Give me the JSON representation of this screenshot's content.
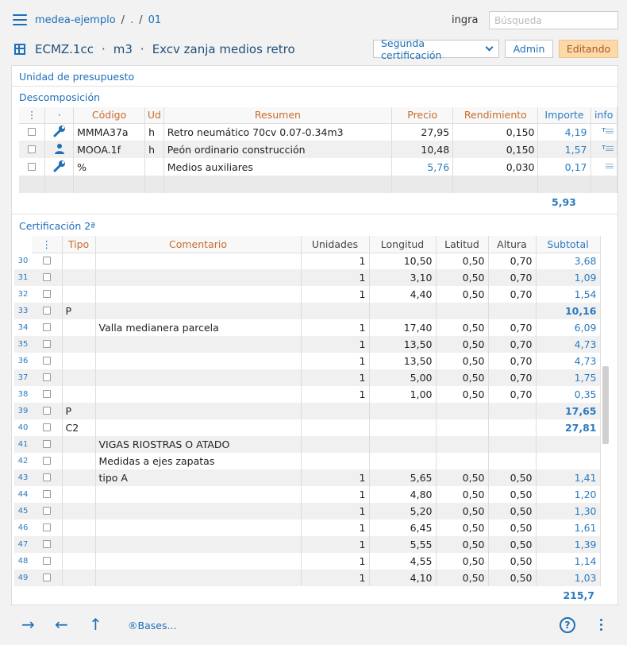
{
  "topbar": {
    "breadcrumb": [
      "medea-ejemplo",
      ".",
      "01"
    ],
    "user": "ingra",
    "search_placeholder": "Búsqueda"
  },
  "titlebar": {
    "code": "ECMZ.1cc",
    "unit": "m3",
    "summary": "Excv zanja medios retro",
    "cert_select": "Segunda certificación",
    "admin_label": "Admin",
    "edit_label": "Editando"
  },
  "unit_section_title": "Unidad de presupuesto",
  "decomp": {
    "title": "Descomposición",
    "headers": [
      "⋮",
      "·",
      "Código",
      "Ud",
      "Resumen",
      "Precio",
      "Rendimiento",
      "Importe",
      "info"
    ],
    "rows": [
      {
        "icon": "wrench-icon",
        "code": "MMMA37a",
        "ud": "h",
        "summary": "Retro neumático 70cv 0.07-0.34m3",
        "price": "27,95",
        "yield": "0,150",
        "amount": "4,19",
        "info": "ᵀ𝄘"
      },
      {
        "icon": "person-icon",
        "code": "MOOA.1f",
        "ud": "h",
        "summary": "Peón ordinario construcción",
        "price": "10,48",
        "yield": "0,150",
        "amount": "1,57",
        "info": "ᵀ𝄘"
      },
      {
        "icon": "wrench-icon",
        "code": "%",
        "ud": "",
        "summary": "Medios auxiliares",
        "price": "5,76",
        "yield": "0,030",
        "amount": "0,17",
        "info": "𝄘"
      }
    ],
    "total": "5,93"
  },
  "cert": {
    "title": "Certificación 2ª",
    "headers": [
      "⋮",
      "Tipo",
      "Comentario",
      "Unidades",
      "Longitud",
      "Latitud",
      "Altura",
      "Subtotal"
    ],
    "rows": [
      {
        "n": "30",
        "tipo": "",
        "com": "",
        "u": "1",
        "lo": "10,50",
        "la": "0,50",
        "al": "0,70",
        "st": "3,68",
        "bold": false
      },
      {
        "n": "31",
        "tipo": "",
        "com": "",
        "u": "1",
        "lo": "3,10",
        "la": "0,50",
        "al": "0,70",
        "st": "1,09",
        "bold": false
      },
      {
        "n": "32",
        "tipo": "",
        "com": "",
        "u": "1",
        "lo": "4,40",
        "la": "0,50",
        "al": "0,70",
        "st": "1,54",
        "bold": false
      },
      {
        "n": "33",
        "tipo": "P",
        "com": "",
        "u": "",
        "lo": "",
        "la": "",
        "al": "",
        "st": "10,16",
        "bold": true
      },
      {
        "n": "34",
        "tipo": "",
        "com": "Valla medianera parcela",
        "u": "1",
        "lo": "17,40",
        "la": "0,50",
        "al": "0,70",
        "st": "6,09",
        "bold": false
      },
      {
        "n": "35",
        "tipo": "",
        "com": "",
        "u": "1",
        "lo": "13,50",
        "la": "0,50",
        "al": "0,70",
        "st": "4,73",
        "bold": false
      },
      {
        "n": "36",
        "tipo": "",
        "com": "",
        "u": "1",
        "lo": "13,50",
        "la": "0,50",
        "al": "0,70",
        "st": "4,73",
        "bold": false
      },
      {
        "n": "37",
        "tipo": "",
        "com": "",
        "u": "1",
        "lo": "5,00",
        "la": "0,50",
        "al": "0,70",
        "st": "1,75",
        "bold": false
      },
      {
        "n": "38",
        "tipo": "",
        "com": "",
        "u": "1",
        "lo": "1,00",
        "la": "0,50",
        "al": "0,70",
        "st": "0,35",
        "bold": false
      },
      {
        "n": "39",
        "tipo": "P",
        "com": "",
        "u": "",
        "lo": "",
        "la": "",
        "al": "",
        "st": "17,65",
        "bold": true
      },
      {
        "n": "40",
        "tipo": "C2",
        "com": "",
        "u": "",
        "lo": "",
        "la": "",
        "al": "",
        "st": "27,81",
        "bold": true
      },
      {
        "n": "41",
        "tipo": "",
        "com": "VIGAS RIOSTRAS O ATADO",
        "u": "",
        "lo": "",
        "la": "",
        "al": "",
        "st": "",
        "bold": false
      },
      {
        "n": "42",
        "tipo": "",
        "com": "Medidas a ejes zapatas",
        "u": "",
        "lo": "",
        "la": "",
        "al": "",
        "st": "",
        "bold": false
      },
      {
        "n": "43",
        "tipo": "",
        "com": "tipo A",
        "u": "1",
        "lo": "5,65",
        "la": "0,50",
        "al": "0,50",
        "st": "1,41",
        "bold": false
      },
      {
        "n": "44",
        "tipo": "",
        "com": "",
        "u": "1",
        "lo": "4,80",
        "la": "0,50",
        "al": "0,50",
        "st": "1,20",
        "bold": false
      },
      {
        "n": "45",
        "tipo": "",
        "com": "",
        "u": "1",
        "lo": "5,20",
        "la": "0,50",
        "al": "0,50",
        "st": "1,30",
        "bold": false
      },
      {
        "n": "46",
        "tipo": "",
        "com": "",
        "u": "1",
        "lo": "6,45",
        "la": "0,50",
        "al": "0,50",
        "st": "1,61",
        "bold": false
      },
      {
        "n": "47",
        "tipo": "",
        "com": "",
        "u": "1",
        "lo": "5,55",
        "la": "0,50",
        "al": "0,50",
        "st": "1,39",
        "bold": false
      },
      {
        "n": "48",
        "tipo": "",
        "com": "",
        "u": "1",
        "lo": "4,55",
        "la": "0,50",
        "al": "0,50",
        "st": "1,14",
        "bold": false
      },
      {
        "n": "49",
        "tipo": "",
        "com": "",
        "u": "1",
        "lo": "4,10",
        "la": "0,50",
        "al": "0,50",
        "st": "1,03",
        "bold": false
      }
    ],
    "total": "215,7"
  },
  "bottombar": {
    "forward": "→",
    "back": "←",
    "up": "↑",
    "bases_label": "®Bases...",
    "help": "?"
  }
}
